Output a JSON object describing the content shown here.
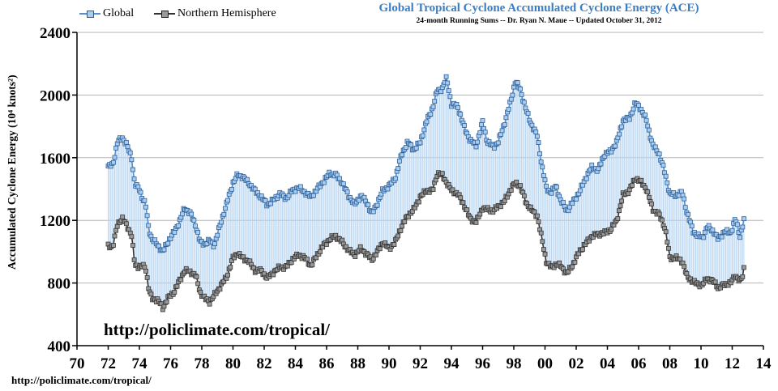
{
  "chart_data": {
    "type": "line",
    "title": "Global Tropical Cyclone Accumulated Cyclone Energy (ACE)",
    "subtitle": "24-month Running Sums -- Dr. Ryan N. Maue -- Updated October 31, 2012",
    "ylabel": "Accumulated Cyclone Energy (10⁴ knots²)",
    "xlabel": "",
    "xlim": [
      1970,
      2014
    ],
    "ylim": [
      400,
      2400
    ],
    "xticks": [
      1970,
      1972,
      1974,
      1976,
      1978,
      1980,
      1982,
      1984,
      1986,
      1988,
      1990,
      1992,
      1994,
      1996,
      1998,
      2000,
      2002,
      2004,
      2006,
      2008,
      2010,
      2012,
      2014
    ],
    "xtick_labels": [
      "70",
      "72",
      "74",
      "76",
      "78",
      "80",
      "82",
      "84",
      "86",
      "88",
      "90",
      "92",
      "94",
      "96",
      "98",
      "00",
      "02",
      "04",
      "06",
      "08",
      "10",
      "12",
      "14"
    ],
    "yticks": [
      400,
      800,
      1200,
      1600,
      2000,
      2400
    ],
    "ytick_labels": [
      "400",
      "800",
      "1200",
      "1600",
      "2000",
      "2400"
    ],
    "grid": true,
    "legend_position": "top-left",
    "series": [
      {
        "name": "Global",
        "color": "#5a8fcf",
        "marker_fill": "#a9cdf0",
        "keypoints": [
          [
            1972.0,
            1540
          ],
          [
            1972.3,
            1560
          ],
          [
            1972.6,
            1700
          ],
          [
            1972.9,
            1730
          ],
          [
            1973.2,
            1680
          ],
          [
            1973.5,
            1600
          ],
          [
            1973.7,
            1430
          ],
          [
            1974.0,
            1400
          ],
          [
            1974.2,
            1340
          ],
          [
            1974.4,
            1300
          ],
          [
            1974.6,
            1150
          ],
          [
            1974.8,
            1080
          ],
          [
            1975.2,
            1040
          ],
          [
            1975.5,
            1000
          ],
          [
            1975.8,
            1060
          ],
          [
            1976.2,
            1120
          ],
          [
            1976.6,
            1200
          ],
          [
            1976.9,
            1280
          ],
          [
            1977.3,
            1240
          ],
          [
            1977.6,
            1170
          ],
          [
            1977.9,
            1060
          ],
          [
            1978.2,
            1050
          ],
          [
            1978.5,
            1070
          ],
          [
            1978.8,
            1040
          ],
          [
            1979.2,
            1180
          ],
          [
            1979.6,
            1310
          ],
          [
            1980.0,
            1440
          ],
          [
            1980.3,
            1490
          ],
          [
            1980.6,
            1480
          ],
          [
            1981.0,
            1440
          ],
          [
            1981.4,
            1390
          ],
          [
            1981.8,
            1350
          ],
          [
            1982.2,
            1300
          ],
          [
            1982.6,
            1330
          ],
          [
            1983.0,
            1370
          ],
          [
            1983.4,
            1340
          ],
          [
            1983.8,
            1390
          ],
          [
            1984.2,
            1410
          ],
          [
            1984.6,
            1380
          ],
          [
            1985.0,
            1350
          ],
          [
            1985.4,
            1400
          ],
          [
            1985.8,
            1450
          ],
          [
            1986.2,
            1500
          ],
          [
            1986.6,
            1490
          ],
          [
            1987.0,
            1440
          ],
          [
            1987.4,
            1360
          ],
          [
            1987.8,
            1300
          ],
          [
            1988.2,
            1360
          ],
          [
            1988.6,
            1310
          ],
          [
            1988.9,
            1240
          ],
          [
            1989.2,
            1300
          ],
          [
            1989.6,
            1390
          ],
          [
            1990.0,
            1420
          ],
          [
            1990.4,
            1470
          ],
          [
            1990.8,
            1620
          ],
          [
            1991.2,
            1700
          ],
          [
            1991.6,
            1650
          ],
          [
            1992.0,
            1700
          ],
          [
            1992.4,
            1830
          ],
          [
            1992.8,
            1920
          ],
          [
            1993.1,
            2030
          ],
          [
            1993.4,
            2040
          ],
          [
            1993.7,
            2110
          ],
          [
            1994.0,
            1940
          ],
          [
            1994.4,
            1930
          ],
          [
            1994.8,
            1800
          ],
          [
            1995.2,
            1710
          ],
          [
            1995.6,
            1680
          ],
          [
            1996.0,
            1830
          ],
          [
            1996.3,
            1700
          ],
          [
            1996.7,
            1670
          ],
          [
            1997.0,
            1700
          ],
          [
            1997.4,
            1820
          ],
          [
            1997.8,
            1960
          ],
          [
            1998.1,
            2090
          ],
          [
            1998.4,
            2040
          ],
          [
            1998.8,
            1900
          ],
          [
            1999.1,
            1820
          ],
          [
            1999.5,
            1740
          ],
          [
            1999.8,
            1550
          ],
          [
            2000.1,
            1400
          ],
          [
            2000.4,
            1380
          ],
          [
            2000.7,
            1420
          ],
          [
            2001.0,
            1330
          ],
          [
            2001.4,
            1260
          ],
          [
            2001.8,
            1320
          ],
          [
            2002.2,
            1380
          ],
          [
            2002.6,
            1470
          ],
          [
            2003.0,
            1540
          ],
          [
            2003.4,
            1520
          ],
          [
            2003.8,
            1620
          ],
          [
            2004.2,
            1640
          ],
          [
            2004.6,
            1700
          ],
          [
            2005.0,
            1840
          ],
          [
            2005.4,
            1850
          ],
          [
            2005.8,
            1950
          ],
          [
            2006.1,
            1920
          ],
          [
            2006.5,
            1840
          ],
          [
            2006.9,
            1680
          ],
          [
            2007.3,
            1630
          ],
          [
            2007.7,
            1500
          ],
          [
            2008.0,
            1370
          ],
          [
            2008.4,
            1360
          ],
          [
            2008.8,
            1380
          ],
          [
            2009.1,
            1250
          ],
          [
            2009.5,
            1130
          ],
          [
            2009.8,
            1100
          ],
          [
            2010.1,
            1090
          ],
          [
            2010.4,
            1160
          ],
          [
            2010.8,
            1130
          ],
          [
            2011.1,
            1080
          ],
          [
            2011.5,
            1130
          ],
          [
            2011.9,
            1120
          ],
          [
            2012.2,
            1210
          ],
          [
            2012.5,
            1100
          ],
          [
            2012.7,
            1180
          ],
          [
            2012.83,
            1240
          ]
        ]
      },
      {
        "name": "Northern Hemisphere",
        "color": "#333333",
        "marker_fill": "#9a9a9a",
        "keypoints": [
          [
            1972.0,
            1040
          ],
          [
            1972.3,
            1030
          ],
          [
            1972.6,
            1180
          ],
          [
            1972.9,
            1210
          ],
          [
            1973.2,
            1170
          ],
          [
            1973.5,
            1100
          ],
          [
            1973.7,
            920
          ],
          [
            1974.0,
            900
          ],
          [
            1974.2,
            910
          ],
          [
            1974.4,
            900
          ],
          [
            1974.6,
            760
          ],
          [
            1974.8,
            700
          ],
          [
            1975.2,
            690
          ],
          [
            1975.5,
            640
          ],
          [
            1975.8,
            700
          ],
          [
            1976.2,
            740
          ],
          [
            1976.6,
            820
          ],
          [
            1976.9,
            880
          ],
          [
            1977.3,
            870
          ],
          [
            1977.6,
            850
          ],
          [
            1977.9,
            740
          ],
          [
            1978.2,
            700
          ],
          [
            1978.5,
            680
          ],
          [
            1978.8,
            720
          ],
          [
            1979.2,
            780
          ],
          [
            1979.6,
            840
          ],
          [
            1980.0,
            960
          ],
          [
            1980.3,
            990
          ],
          [
            1980.6,
            960
          ],
          [
            1981.0,
            940
          ],
          [
            1981.4,
            880
          ],
          [
            1981.8,
            880
          ],
          [
            1982.2,
            830
          ],
          [
            1982.6,
            870
          ],
          [
            1983.0,
            900
          ],
          [
            1983.4,
            900
          ],
          [
            1983.8,
            950
          ],
          [
            1984.2,
            980
          ],
          [
            1984.6,
            960
          ],
          [
            1985.0,
            910
          ],
          [
            1985.4,
            980
          ],
          [
            1985.8,
            1040
          ],
          [
            1986.2,
            1080
          ],
          [
            1986.6,
            1100
          ],
          [
            1987.0,
            1060
          ],
          [
            1987.4,
            1010
          ],
          [
            1987.8,
            980
          ],
          [
            1988.2,
            1020
          ],
          [
            1988.6,
            980
          ],
          [
            1988.9,
            950
          ],
          [
            1989.2,
            990
          ],
          [
            1989.6,
            1060
          ],
          [
            1990.0,
            1020
          ],
          [
            1990.4,
            1060
          ],
          [
            1990.8,
            1160
          ],
          [
            1991.2,
            1230
          ],
          [
            1991.6,
            1270
          ],
          [
            1992.0,
            1350
          ],
          [
            1992.4,
            1390
          ],
          [
            1992.8,
            1390
          ],
          [
            1993.1,
            1500
          ],
          [
            1993.4,
            1490
          ],
          [
            1993.7,
            1440
          ],
          [
            1994.0,
            1390
          ],
          [
            1994.4,
            1370
          ],
          [
            1994.8,
            1300
          ],
          [
            1995.2,
            1210
          ],
          [
            1995.6,
            1190
          ],
          [
            1996.0,
            1280
          ],
          [
            1996.3,
            1270
          ],
          [
            1996.7,
            1260
          ],
          [
            1997.0,
            1290
          ],
          [
            1997.4,
            1320
          ],
          [
            1997.8,
            1400
          ],
          [
            1998.1,
            1440
          ],
          [
            1998.4,
            1420
          ],
          [
            1998.8,
            1310
          ],
          [
            1999.1,
            1270
          ],
          [
            1999.5,
            1230
          ],
          [
            1999.8,
            1080
          ],
          [
            2000.1,
            930
          ],
          [
            2000.4,
            900
          ],
          [
            2000.7,
            920
          ],
          [
            2001.0,
            910
          ],
          [
            2001.4,
            860
          ],
          [
            2001.8,
            920
          ],
          [
            2002.2,
            1000
          ],
          [
            2002.6,
            1050
          ],
          [
            2003.0,
            1100
          ],
          [
            2003.4,
            1110
          ],
          [
            2003.8,
            1120
          ],
          [
            2004.2,
            1140
          ],
          [
            2004.6,
            1200
          ],
          [
            2005.0,
            1360
          ],
          [
            2005.4,
            1390
          ],
          [
            2005.8,
            1470
          ],
          [
            2006.1,
            1450
          ],
          [
            2006.5,
            1400
          ],
          [
            2006.9,
            1270
          ],
          [
            2007.3,
            1240
          ],
          [
            2007.7,
            1150
          ],
          [
            2008.0,
            960
          ],
          [
            2008.4,
            960
          ],
          [
            2008.8,
            940
          ],
          [
            2009.1,
            840
          ],
          [
            2009.5,
            810
          ],
          [
            2009.8,
            790
          ],
          [
            2010.1,
            790
          ],
          [
            2010.4,
            830
          ],
          [
            2010.8,
            810
          ],
          [
            2011.1,
            770
          ],
          [
            2011.5,
            790
          ],
          [
            2011.9,
            800
          ],
          [
            2012.2,
            850
          ],
          [
            2012.5,
            810
          ],
          [
            2012.7,
            850
          ],
          [
            2012.83,
            960
          ]
        ]
      }
    ],
    "annotations": [
      "http://policlimate.com/tropical/"
    ]
  },
  "footer_text": "http://policlimate.com/tropical/"
}
